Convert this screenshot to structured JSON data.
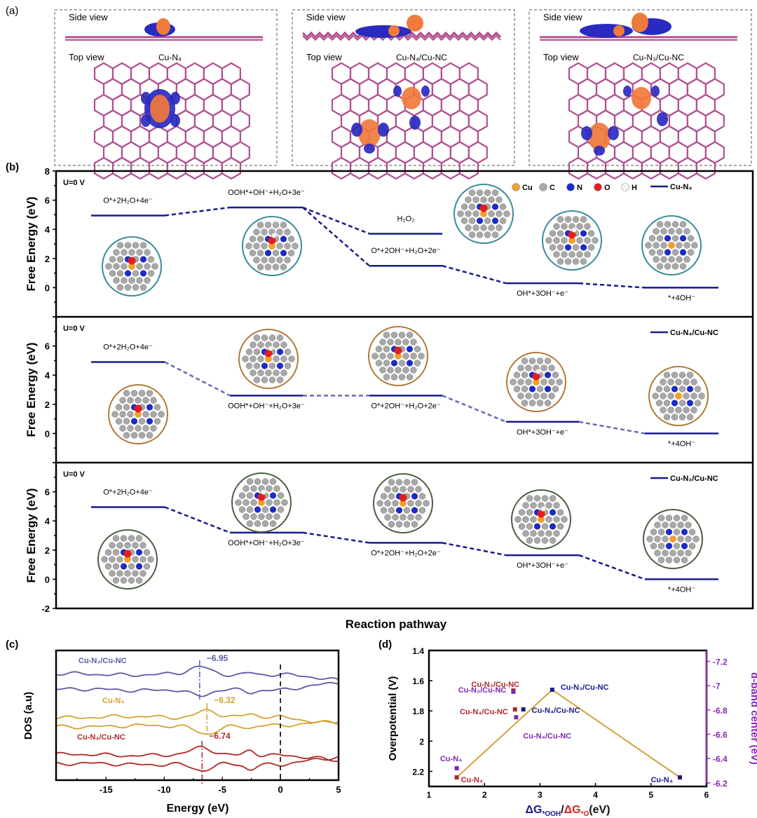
{
  "panel_labels": {
    "a": "(a)",
    "b": "(b)",
    "c": "(c)",
    "d": "(d)"
  },
  "panel_a": {
    "views": [
      {
        "side_label": "Side view",
        "top_label": "Top view",
        "structure": "Cu-N₄"
      },
      {
        "side_label": "Side view",
        "top_label": "Top view",
        "structure": "Cu-N₄/Cu-NC"
      },
      {
        "side_label": "Side view",
        "top_label": "Top view",
        "structure": "Cu-N₃/Cu-NC"
      }
    ],
    "colors": {
      "lattice": "#b0508f",
      "charge_gain": "#f07a3c",
      "charge_loss": "#2a2ac0"
    }
  },
  "panel_b": {
    "xlabel": "Reaction pathway",
    "atom_legend": [
      {
        "label": "Cu",
        "color": "#f0a030"
      },
      {
        "label": "C",
        "color": "#a8a8a8"
      },
      {
        "label": "N",
        "color": "#1a2ad0"
      },
      {
        "label": "O",
        "color": "#e02020"
      },
      {
        "label": "H",
        "color": "#f4f4f4"
      }
    ]
  },
  "chart_data": [
    {
      "type": "line",
      "title": "",
      "ylabel": "Free Energy (eV)",
      "annotation": "U=0 V",
      "legend": "Cu-N₄",
      "line_color": "#1a1a8c",
      "ring_color": "#3a8a9a",
      "ylim": [
        -2,
        8
      ],
      "yticks": [
        8,
        6,
        4,
        2,
        0
      ],
      "levels": [
        {
          "step": 1,
          "label": "O*+2H₂O+4e⁻",
          "value": 4.95,
          "label_side": "above"
        },
        {
          "step": 2,
          "label": "OOH*+OH⁻+H₂O+3e⁻",
          "value": 5.5,
          "label_side": "above"
        },
        {
          "step": 3,
          "label": "H₂O₂",
          "value": 3.7,
          "label_side": "above"
        },
        {
          "step": 3,
          "label": "O*+2OH⁻+H₂O+2e⁻",
          "value": 1.5,
          "label_side": "above"
        },
        {
          "step": 4,
          "label": "OH*+3OH⁻+e⁻",
          "value": 0.3,
          "label_side": "below"
        },
        {
          "step": 5,
          "label": "*+4OH⁻",
          "value": 0.0,
          "label_side": "below"
        }
      ],
      "connections": [
        [
          0,
          1
        ],
        [
          1,
          2
        ],
        [
          1,
          3
        ],
        [
          3,
          4
        ],
        [
          4,
          5
        ]
      ]
    },
    {
      "type": "line",
      "title": "",
      "ylabel": "Free Energy (eV)",
      "annotation": "U=0 V",
      "legend": "Cu-N₄/Cu-NC",
      "line_color": "#1a1a8c",
      "dash_color": "#6a6ab8",
      "ring_color": "#b07a3a",
      "ylim": [
        -2,
        8
      ],
      "yticks": [
        6,
        4,
        2,
        0
      ],
      "levels": [
        {
          "step": 1,
          "label": "O*+2H₂O+4e⁻",
          "value": 4.9,
          "label_side": "above"
        },
        {
          "step": 2,
          "label": "OOH*+OH⁻+H₂O+3e⁻",
          "value": 2.6,
          "label_side": "below"
        },
        {
          "step": 3,
          "label": "O*+2OH⁻+H₂O+2e⁻",
          "value": 2.6,
          "label_side": "below"
        },
        {
          "step": 4,
          "label": "OH*+3OH⁻+e⁻",
          "value": 0.8,
          "label_side": "below"
        },
        {
          "step": 5,
          "label": "*+4OH⁻",
          "value": 0.0,
          "label_side": "below"
        }
      ],
      "connections": [
        [
          0,
          1
        ],
        [
          1,
          2
        ],
        [
          2,
          3
        ],
        [
          3,
          4
        ]
      ]
    },
    {
      "type": "line",
      "title": "",
      "ylabel": "Free Energy (eV)",
      "annotation": "U=0 V",
      "legend": "Cu-N₃/Cu-NC",
      "line_color": "#1a1a8c",
      "ring_color": "#4a5e40",
      "ylim": [
        -2,
        8
      ],
      "yticks": [
        6,
        4,
        2,
        0,
        -2
      ],
      "levels": [
        {
          "step": 1,
          "label": "O*+2H₂O+4e⁻",
          "value": 4.95,
          "label_side": "above"
        },
        {
          "step": 2,
          "label": "OOH*+OH⁻+H₂O+3e⁻",
          "value": 3.2,
          "label_side": "below"
        },
        {
          "step": 3,
          "label": "O*+2OH⁻+H₂O+2e⁻",
          "value": 2.5,
          "label_side": "below"
        },
        {
          "step": 4,
          "label": "OH*+3OH⁻+e⁻",
          "value": 1.65,
          "label_side": "below"
        },
        {
          "step": 5,
          "label": "*+4OH⁻",
          "value": 0.0,
          "label_side": "below"
        }
      ],
      "connections": [
        [
          0,
          1
        ],
        [
          1,
          2
        ],
        [
          2,
          3
        ],
        [
          3,
          4
        ]
      ]
    },
    {
      "type": "line",
      "title": "",
      "xlabel": "Energy (eV)",
      "ylabel": "DOS (a.u)",
      "xlim": [
        -19.3,
        5
      ],
      "xticks": [
        -15,
        -10,
        -5,
        0,
        5
      ],
      "fermi_level": 0,
      "series": [
        {
          "name": "Cu-N₃/Cu-NC",
          "color": "#5a5aa8",
          "d_band_center": -6.95,
          "d_band_label": "−6.95"
        },
        {
          "name": "Cu-N₄",
          "color": "#d4a030",
          "d_band_center": -6.32,
          "d_band_label": "−6.32"
        },
        {
          "name": "Cu-N₄/Cu-NC",
          "color": "#b02828",
          "d_band_center": -6.74,
          "d_band_label": "−6.74"
        }
      ]
    },
    {
      "type": "scatter",
      "title": "",
      "xlabel_parts": [
        {
          "text": "ΔG",
          "color": "#1a1a8c"
        },
        {
          "text": "*OOH",
          "color": "#1a1a8c",
          "sub": true
        },
        {
          "text": "/",
          "color": "#111111"
        },
        {
          "text": "ΔG",
          "color": "#d02020"
        },
        {
          "text": "*O",
          "color": "#d02020",
          "sub": true
        },
        {
          "text": "(eV)",
          "color": "#111111"
        }
      ],
      "ylabel": "Overpotential (V)",
      "y2label": "d-band center (eV)",
      "xlim": [
        1,
        6
      ],
      "xticks": [
        1,
        2,
        3,
        4,
        5,
        6
      ],
      "ylim": [
        1.4,
        2.3
      ],
      "yticks": [
        1.4,
        1.6,
        1.8,
        2.0,
        2.2
      ],
      "y_inverted": true,
      "y2lim": [
        -7.29,
        -6.17
      ],
      "y2ticks": [
        -7.2,
        -7.0,
        -6.8,
        -6.6,
        -6.4,
        -6.2
      ],
      "colors": {
        "line": "#d4a040",
        "axis2": "#8a2ab0"
      },
      "volcano_line": [
        [
          1.5,
          2.24
        ],
        [
          3.22,
          1.66
        ],
        [
          5.52,
          2.24
        ]
      ],
      "series": [
        {
          "axis": "left",
          "color": "#1a1a8c",
          "points": [
            {
              "x": 3.22,
              "y": 1.66,
              "label": "Cu-N₃/Cu-NC"
            },
            {
              "x": 2.7,
              "y": 1.79,
              "label": "Cu-N₄/Cu-NC"
            },
            {
              "x": 5.52,
              "y": 2.24,
              "label": "Cu-N₄"
            }
          ]
        },
        {
          "axis": "left",
          "color": "#b02828",
          "points": [
            {
              "x": 2.52,
              "y": 1.665,
              "label": "Cu-N₃/Cu-NC"
            },
            {
              "x": 2.55,
              "y": 1.79,
              "label": "Cu-N₄/Cu-NC"
            },
            {
              "x": 1.5,
              "y": 2.24,
              "label": "Cu-N₄"
            }
          ]
        },
        {
          "axis": "right",
          "color": "#7a2ab0",
          "points": [
            {
              "x": 2.52,
              "y": -6.95,
              "label": "Cu-N₃/Cu-NC"
            },
            {
              "x": 2.57,
              "y": -6.74,
              "label": "Cu-N₄/Cu-NC"
            },
            {
              "x": 1.5,
              "y": -6.32,
              "label": "Cu-N₄"
            }
          ]
        }
      ]
    }
  ]
}
